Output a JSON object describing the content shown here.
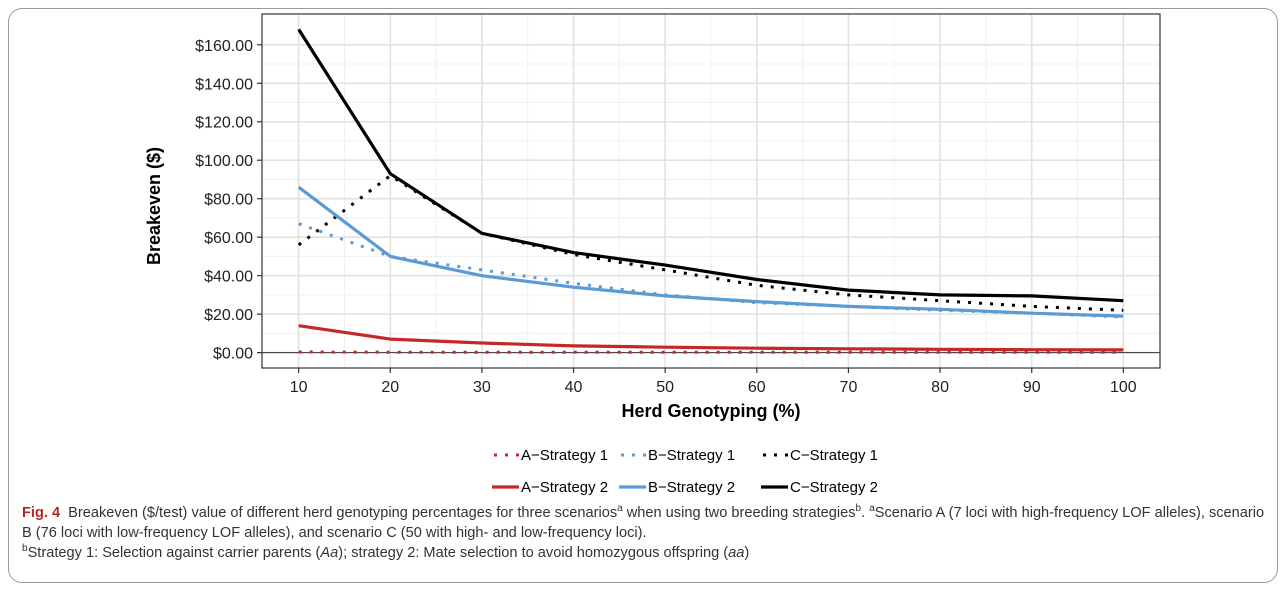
{
  "chart_data": {
    "type": "line",
    "title": "",
    "xlabel": "Herd Genotyping (%)",
    "ylabel": "Breakeven ($)",
    "x": [
      10,
      20,
      30,
      40,
      50,
      60,
      70,
      80,
      90,
      100
    ],
    "x_ticks": [
      "10",
      "20",
      "30",
      "40",
      "50",
      "60",
      "70",
      "80",
      "90",
      "100"
    ],
    "xlim": [
      6,
      104
    ],
    "ylim": [
      -8,
      176
    ],
    "y_ticks": [
      {
        "value": 0,
        "label": "$0.00"
      },
      {
        "value": 20,
        "label": "$20.00"
      },
      {
        "value": 40,
        "label": "$40.00"
      },
      {
        "value": 60,
        "label": "$60.00"
      },
      {
        "value": 80,
        "label": "$80.00"
      },
      {
        "value": 100,
        "label": "$100.00"
      },
      {
        "value": 120,
        "label": "$120.00"
      },
      {
        "value": 140,
        "label": "$140.00"
      },
      {
        "value": 160,
        "label": "$160.00"
      }
    ],
    "grid": true,
    "legend_position": "bottom",
    "series": [
      {
        "name": "A−Strategy 1",
        "color": "#c62828",
        "style": "dotted",
        "values": [
          0.3,
          0.2,
          0.2,
          0.2,
          0.2,
          0.2,
          0.2,
          0.2,
          0.2,
          0.2
        ]
      },
      {
        "name": "B−Strategy 1",
        "color": "#5b9bd5",
        "style": "dotted",
        "values": [
          67,
          50,
          43,
          36,
          30,
          26,
          24,
          22,
          20.5,
          18.5
        ]
      },
      {
        "name": "C−Strategy 1",
        "color": "#000000",
        "style": "dotted",
        "values": [
          56,
          92,
          62,
          51,
          43,
          35,
          30,
          27,
          24,
          22
        ]
      },
      {
        "name": "A−Strategy 2",
        "color": "#c62828",
        "style": "solid",
        "values": [
          14,
          7,
          5,
          3.5,
          2.8,
          2.3,
          2,
          1.7,
          1.5,
          1.4
        ]
      },
      {
        "name": "B−Strategy 2",
        "color": "#5b9bd5",
        "style": "solid",
        "values": [
          86,
          50,
          40,
          34,
          29.5,
          26.5,
          24,
          22.5,
          20.5,
          19
        ]
      },
      {
        "name": "C−Strategy 2",
        "color": "#000000",
        "style": "solid",
        "values": [
          168,
          93,
          62,
          52,
          45.5,
          38,
          32.5,
          30,
          29.5,
          27
        ]
      }
    ]
  },
  "caption": {
    "fig_label": "Fig. 4",
    "text1": "Breakeven ($/test) value of different herd genotyping percentages for three scenarios",
    "sup_a": "a",
    "text2": " when using two breeding strategies",
    "sup_b": "b",
    "text3": ". ",
    "sup_a2": "a",
    "text4": "Scenario A (7 loci with high-frequency LOF alleles), scenario B (76 loci with low-frequency LOF alleles), and scenario C (50 with high- and low-frequency loci).",
    "sup_b2": "b",
    "text5": "Strategy 1: Selection against carrier parents (",
    "aa_carrier": "Aa",
    "text6": "); strategy 2: Mate selection to avoid homozygous offspring (",
    "aa_homo": "aa",
    "text7": ")"
  }
}
